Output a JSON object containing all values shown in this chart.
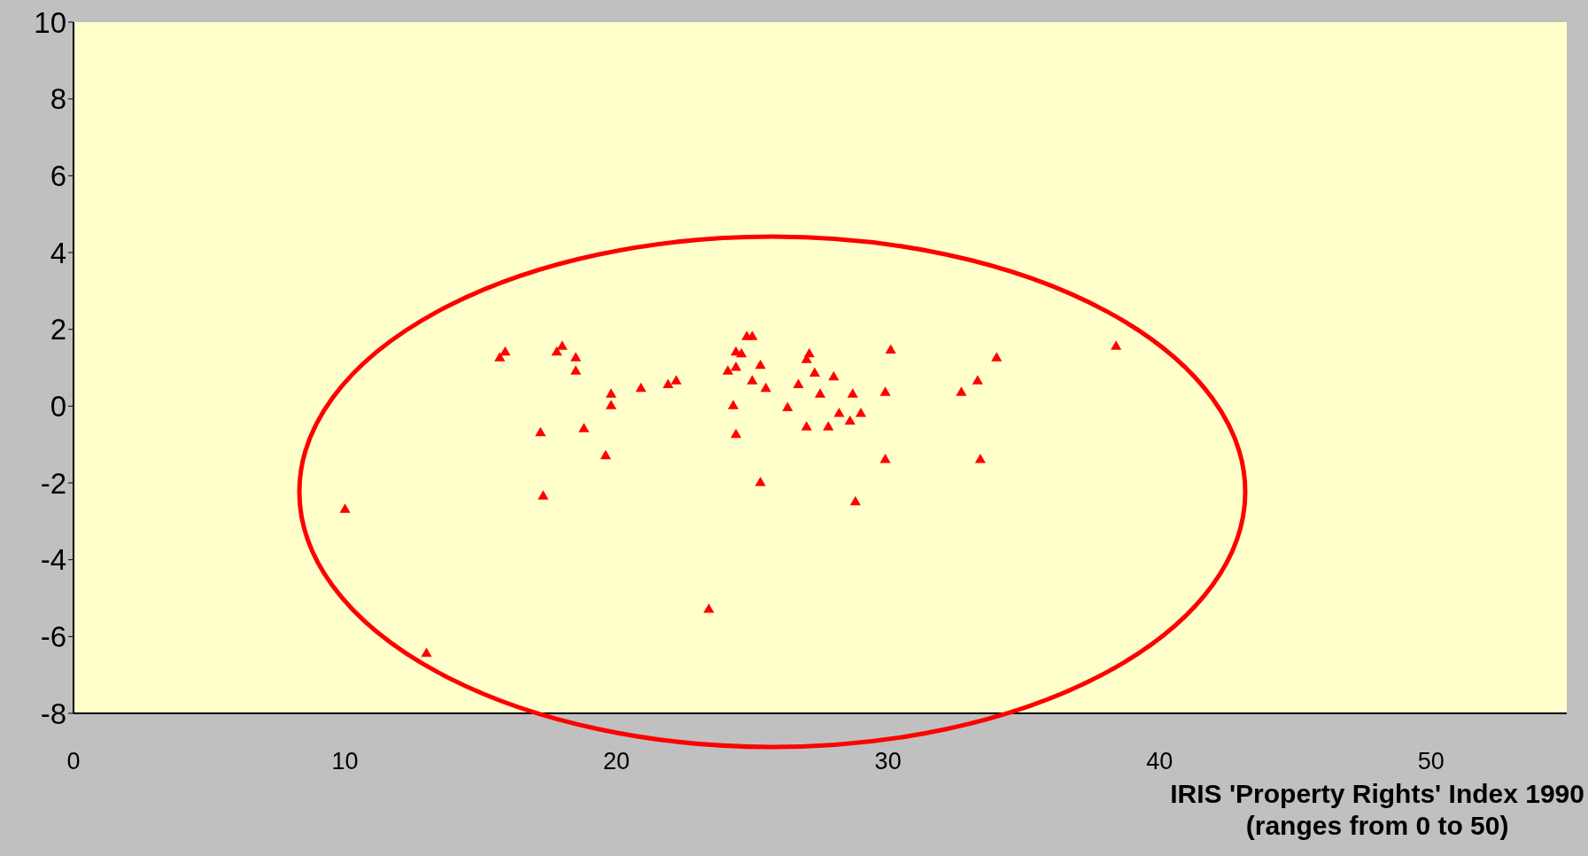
{
  "chart_data": {
    "type": "scatter",
    "xlabel": "IRIS 'Property Rights' Index 1990\n(ranges from 0 to 50)",
    "series": [
      {
        "color": "#ff0000",
        "x": [
          10.0,
          13.0,
          15.7,
          15.9,
          17.2,
          17.3,
          17.8,
          18.0,
          18.5,
          18.5,
          18.8,
          19.6,
          19.8,
          19.8,
          20.9,
          21.9,
          22.2,
          23.4,
          24.1,
          24.4,
          24.4,
          24.6,
          24.3,
          24.4,
          24.8,
          25.0,
          25.0,
          25.3,
          25.5,
          25.3,
          26.3,
          26.7,
          27.0,
          27.1,
          27.0,
          27.3,
          27.5,
          27.8,
          28.0,
          28.2,
          28.6,
          28.7,
          29.0,
          28.8,
          29.9,
          29.9,
          30.1,
          32.7,
          33.3,
          33.4,
          34.0,
          38.4
        ],
        "values": [
          -2.7,
          -6.45,
          1.25,
          1.4,
          -0.7,
          -2.35,
          1.4,
          1.55,
          1.25,
          0.9,
          -0.6,
          -1.3,
          0.3,
          0.0,
          0.45,
          0.55,
          0.65,
          -5.3,
          0.9,
          1.0,
          1.4,
          1.35,
          0.0,
          -0.75,
          1.8,
          1.8,
          0.65,
          1.05,
          0.45,
          -2.0,
          -0.05,
          0.55,
          1.2,
          1.35,
          -0.55,
          0.85,
          0.3,
          -0.55,
          0.75,
          -0.2,
          -0.4,
          0.3,
          -0.2,
          -2.5,
          0.35,
          -1.4,
          1.45,
          0.35,
          0.65,
          -1.4,
          1.25,
          1.55
        ]
      }
    ],
    "marker": "triangle",
    "xlim": [
      0,
      55
    ],
    "xticks": [
      0,
      10,
      20,
      30,
      40,
      50
    ],
    "ylim": [
      -8,
      10
    ],
    "yticks": [
      -8,
      -6,
      -4,
      -2,
      0,
      2,
      4,
      6,
      8,
      10
    ],
    "grid": false
  }
}
